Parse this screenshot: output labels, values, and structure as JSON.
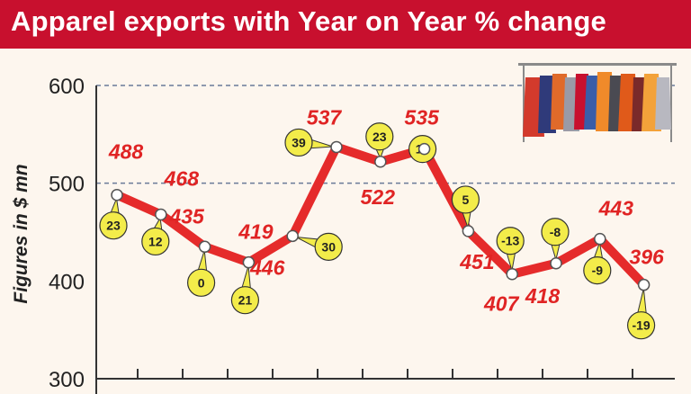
{
  "chart_data": {
    "type": "line",
    "title": "Apparel exports with Year on Year % change",
    "ylabel": "Figures in $ mn",
    "ylim": [
      300,
      600
    ],
    "yticks": [
      300,
      400,
      500,
      600
    ],
    "grid": "dashed lines at 500 and 600",
    "series": [
      {
        "values": [
          488,
          468,
          435,
          419,
          446,
          537,
          522,
          535,
          451,
          407,
          418,
          443,
          396
        ],
        "yoy_change": [
          "23",
          "12",
          "0",
          "21",
          "30",
          "39",
          "23",
          "19",
          "5",
          "-13",
          "-8",
          "-9",
          "-19"
        ]
      }
    ]
  },
  "colors": {
    "banner": "#c8102e",
    "line": "#e52b2b",
    "value_labels": "#e02424",
    "callout_fill": "#f3ec4a",
    "grid": "#6a7a98"
  },
  "decor": {
    "clothes_rack_image": "clothes-rack-illustration"
  }
}
